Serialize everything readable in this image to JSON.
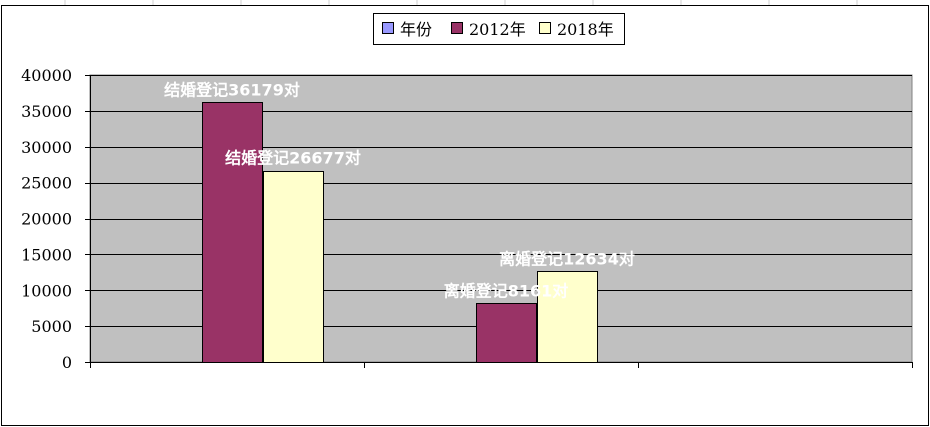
{
  "chart_data": {
    "type": "bar",
    "categories": [
      "",
      "",
      ""
    ],
    "series": [
      {
        "name": "年份",
        "values": [
          null,
          null,
          null
        ]
      },
      {
        "name": "2012年",
        "values": [
          36179,
          8161,
          null
        ]
      },
      {
        "name": "2018年",
        "values": [
          26677,
          12634,
          null
        ]
      }
    ],
    "data_labels": [
      [
        "",
        "",
        ""
      ],
      [
        "结婚登记36179对",
        "离婚登记8161对",
        ""
      ],
      [
        "结婚登记26677对",
        "离婚登记12634对",
        ""
      ]
    ],
    "title": "",
    "xlabel": "",
    "ylabel": "",
    "ylim": [
      0,
      40000
    ],
    "yticks": [
      0,
      5000,
      10000,
      15000,
      20000,
      25000,
      30000,
      35000,
      40000
    ],
    "grid": true,
    "legend_position": "top",
    "colors": {
      "plot_background": "#c0c0c0",
      "series": [
        "#9999ff",
        "#993366",
        "#ffffcc"
      ],
      "bar_outline": "#000000",
      "gridline": "#000000"
    }
  }
}
